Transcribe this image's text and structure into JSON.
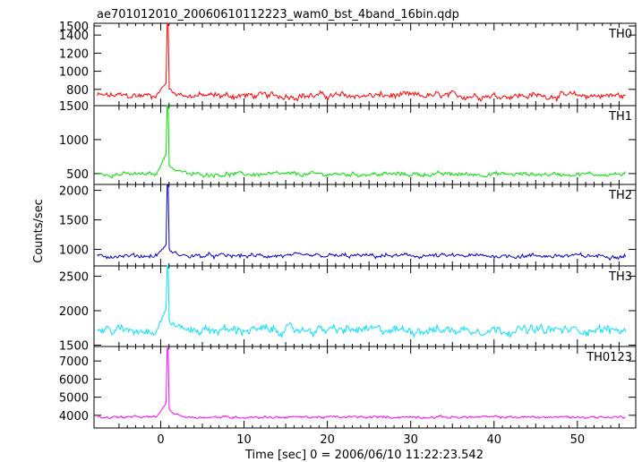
{
  "chart_data": {
    "type": "line",
    "title": "ae701012010_20060610112223_wam0_bst_4band_16bin.qdp",
    "xlabel": "Time [sec] 0 = 2006/06/10 11:22:23.542",
    "ylabel": "Counts/sec",
    "x_ticks": [
      "0",
      "10",
      "20",
      "30",
      "40",
      "50"
    ],
    "xlim": [
      -8,
      57
    ],
    "panels": [
      {
        "name": "TH0",
        "color": "#ff0000",
        "ylim": [
          620,
          1530
        ],
        "y_ticks": [
          "800",
          "1000",
          "1200",
          "1400",
          "1500"
        ],
        "baseline": 730,
        "noise": 70,
        "pre_burst": 880,
        "peak": 1530
      },
      {
        "name": "TH1",
        "color": "#00e000",
        "ylim": [
          340,
          1500
        ],
        "y_ticks": [
          "500",
          "1000",
          "1500"
        ],
        "baseline": 490,
        "noise": 60,
        "pre_burst": 800,
        "peak": 1500
      },
      {
        "name": "TH2",
        "color": "#0000cc",
        "ylim": [
          720,
          2100
        ],
        "y_ticks": [
          "1000",
          "1500",
          "2000"
        ],
        "baseline": 890,
        "noise": 70,
        "pre_burst": 1080,
        "peak": 2100
      },
      {
        "name": "TH3",
        "color": "#00e0ff",
        "ylim": [
          1480,
          2650
        ],
        "y_ticks": [
          "1500",
          "2000",
          "2500"
        ],
        "baseline": 1720,
        "noise": 120,
        "pre_burst": 2020,
        "peak": 2650
      },
      {
        "name": "TH0123",
        "color": "#ff00ff",
        "ylim": [
          3300,
          7800
        ],
        "y_ticks": [
          "4000",
          "5000",
          "6000",
          "7000"
        ],
        "baseline": 3900,
        "noise": 130,
        "pre_burst": 4700,
        "peak": 7700
      }
    ]
  }
}
